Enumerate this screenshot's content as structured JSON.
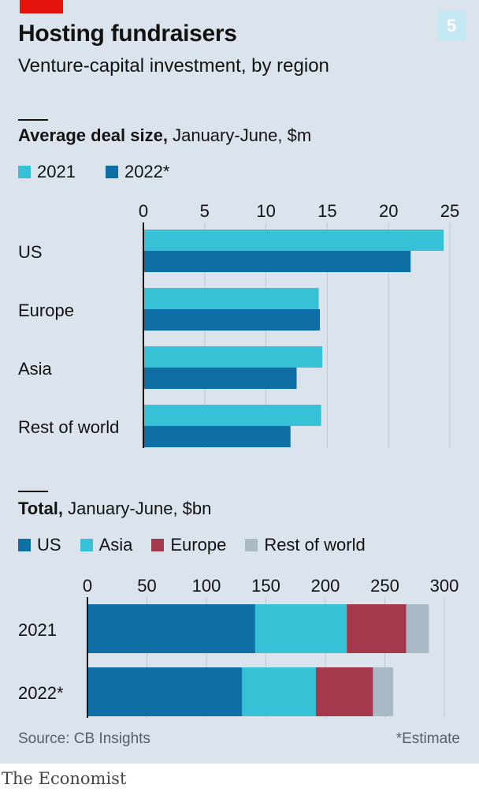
{
  "header": {
    "title": "Hosting fundraisers",
    "subtitle": "Venture-capital investment, by region",
    "chart_number": "5"
  },
  "chart_data": [
    {
      "type": "bar",
      "orientation": "horizontal",
      "title": "Average deal size,",
      "subtitle": "January-June, $m",
      "categories": [
        "US",
        "Europe",
        "Asia",
        "Rest of world"
      ],
      "series": [
        {
          "name": "2021",
          "color": "#36c1d6",
          "values": [
            24.5,
            14.3,
            14.6,
            14.5
          ]
        },
        {
          "name": "2022*",
          "color": "#0e6fa4",
          "values": [
            21.8,
            14.4,
            12.5,
            12.0
          ]
        }
      ],
      "xticks": [
        0,
        5,
        10,
        15,
        20,
        25
      ],
      "xlim": [
        0,
        25
      ],
      "grid": true,
      "legend": "top-left"
    },
    {
      "type": "bar",
      "orientation": "horizontal",
      "stacked": true,
      "title": "Total,",
      "subtitle": "January-June, $bn",
      "categories": [
        "2021",
        "2022*"
      ],
      "series": [
        {
          "name": "US",
          "color": "#0e6fa4",
          "values": [
            141,
            130
          ]
        },
        {
          "name": "Asia",
          "color": "#36c1d6",
          "values": [
            77,
            62
          ]
        },
        {
          "name": "Europe",
          "color": "#a3394a",
          "values": [
            50,
            48
          ]
        },
        {
          "name": "Rest of world",
          "color": "#a9bac6",
          "values": [
            19,
            17
          ]
        }
      ],
      "xticks": [
        0,
        50,
        100,
        150,
        200,
        250,
        300
      ],
      "xlim": [
        0,
        300
      ],
      "grid": true,
      "legend": "top-left"
    }
  ],
  "footer": {
    "source": "Source: CB Insights",
    "note": "*Estimate",
    "brand": "The Economist"
  }
}
